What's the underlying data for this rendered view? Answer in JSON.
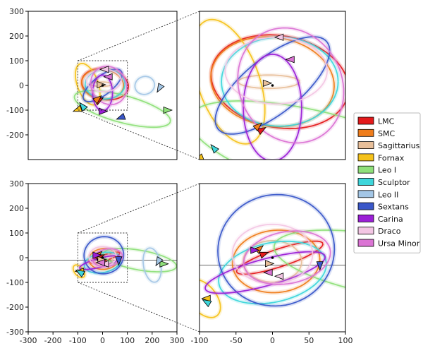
{
  "chart_data": {
    "type": "line",
    "panels": [
      {
        "id": "top-left",
        "xlim": [
          -300,
          300
        ],
        "ylim": [
          -300,
          300
        ],
        "yticks": [
          300,
          200,
          100,
          0,
          -100,
          -200
        ],
        "zoom_box": [
          -100,
          100,
          -100,
          100
        ]
      },
      {
        "id": "top-right",
        "xlim": [
          -100,
          100
        ],
        "ylim": [
          -100,
          100
        ]
      },
      {
        "id": "bottom-left",
        "xlim": [
          -300,
          300
        ],
        "ylim": [
          -300,
          300
        ],
        "xticks": [
          -300,
          -200,
          -100,
          0,
          100,
          200,
          300
        ],
        "yticks": [
          300,
          200,
          100,
          0,
          -100,
          -200,
          -300
        ],
        "zoom_box": [
          -100,
          100,
          -100,
          100
        ],
        "hline_y": -10
      },
      {
        "id": "bottom-right",
        "xlim": [
          -100,
          100
        ],
        "ylim": [
          -100,
          100
        ],
        "xticks": [
          -100,
          -50,
          0,
          50,
          100
        ],
        "hline_y": -10
      }
    ],
    "series": [
      {
        "name": "LMC",
        "color": "#e41a1c",
        "orbits": [
          {
            "cx": 10,
            "cy": 5,
            "rx": 95,
            "ry": 62,
            "rot": -10
          },
          {
            "cx": 10,
            "cy": 0,
            "rx": 62,
            "ry": 12,
            "rot": 18
          }
        ],
        "markers": [
          [
            -15,
            -60,
            30
          ],
          [
            -12,
            5,
            20
          ]
        ]
      },
      {
        "name": "SMC",
        "color": "#ef7d1c",
        "orbits": [
          {
            "cx": 0,
            "cy": 5,
            "rx": 85,
            "ry": 60,
            "rot": -8
          },
          {
            "cx": 5,
            "cy": -5,
            "rx": 60,
            "ry": 42,
            "rot": 5
          }
        ],
        "markers": [
          [
            -20,
            -55,
            40
          ],
          [
            -18,
            12,
            40
          ]
        ]
      },
      {
        "name": "Sagittarius",
        "color": "#e8bf9a",
        "orbits": [
          {
            "cx": -5,
            "cy": 5,
            "rx": 42,
            "ry": 9,
            "rot": 0
          },
          {
            "cx": 0,
            "cy": -5,
            "rx": 40,
            "ry": 28,
            "rot": 0
          }
        ],
        "markers": [
          [
            -8,
            3,
            0
          ],
          [
            -5,
            -8,
            0
          ]
        ]
      },
      {
        "name": "Fornax",
        "color": "#f5c21b",
        "orbits": [
          {
            "cx": -60,
            "cy": 5,
            "rx": 42,
            "ry": 88,
            "rot": 20
          },
          {
            "cx": -95,
            "cy": -55,
            "rx": 18,
            "ry": 30,
            "rot": 40
          }
        ],
        "markers": [
          [
            -100,
            -98,
            200
          ],
          [
            -90,
            -55,
            180
          ]
        ]
      },
      {
        "name": "Leo I",
        "color": "#8fe07a",
        "orbits": [
          {
            "cx": 80,
            "cy": -95,
            "rx": 200,
            "ry": 55,
            "rot": -15
          },
          {
            "cx": 150,
            "cy": -10,
            "rx": 150,
            "ry": 40,
            "rot": -10
          }
        ],
        "markers": [
          [
            260,
            -100,
            0
          ],
          [
            245,
            -25,
            0
          ]
        ]
      },
      {
        "name": "Sculptor",
        "color": "#3ed6db",
        "orbits": [
          {
            "cx": 10,
            "cy": 5,
            "rx": 80,
            "ry": 60,
            "rot": 0
          },
          {
            "cx": 0,
            "cy": -20,
            "rx": 75,
            "ry": 40,
            "rot": 12
          }
        ],
        "markers": [
          [
            -80,
            -85,
            130
          ],
          [
            -90,
            -60,
            150
          ]
        ]
      },
      {
        "name": "Leo II",
        "color": "#a3c6e6",
        "orbits": [
          {
            "cx": 170,
            "cy": 0,
            "rx": 40,
            "ry": 36,
            "rot": 20
          },
          {
            "cx": 200,
            "cy": -30,
            "rx": 35,
            "ry": 70,
            "rot": 10
          }
        ],
        "markers": [
          [
            230,
            -10,
            240
          ],
          [
            225,
            -15,
            240
          ]
        ]
      },
      {
        "name": "Sextans",
        "color": "#3a57c9",
        "orbits": [
          {
            "cx": 0,
            "cy": 0,
            "rx": 95,
            "ry": 38,
            "rot": 38
          },
          {
            "cx": 5,
            "cy": 10,
            "rx": 80,
            "ry": 75,
            "rot": 10
          }
        ],
        "markers": [
          [
            75,
            -130,
            200
          ],
          [
            65,
            -10,
            270
          ]
        ]
      },
      {
        "name": "Carina",
        "color": "#9b1fd6",
        "orbits": [
          {
            "cx": 0,
            "cy": -30,
            "rx": 40,
            "ry": 72,
            "rot": 0
          },
          {
            "cx": -10,
            "cy": -20,
            "rx": 85,
            "ry": 18,
            "rot": 15
          }
        ],
        "markers": [
          [
            0,
            -105,
            0
          ],
          [
            -25,
            10,
            0
          ]
        ]
      },
      {
        "name": "Draco",
        "color": "#f3c6e4",
        "orbits": [
          {
            "cx": 5,
            "cy": 20,
            "rx": 70,
            "ry": 45,
            "rot": 0
          },
          {
            "cx": 0,
            "cy": 5,
            "rx": 55,
            "ry": 40,
            "rot": 0
          }
        ],
        "markers": [
          [
            10,
            65,
            180
          ],
          [
            10,
            -25,
            180
          ]
        ]
      },
      {
        "name": "Ursa Minor",
        "color": "#db74d4",
        "orbits": [
          {
            "cx": 25,
            "cy": 0,
            "rx": 70,
            "ry": 80,
            "rot": 30
          },
          {
            "cx": 20,
            "cy": 0,
            "rx": 60,
            "ry": 35,
            "rot": 10
          }
        ],
        "markers": [
          [
            25,
            35,
            180
          ],
          [
            -5,
            -20,
            180
          ]
        ]
      }
    ],
    "legend": {
      "position": "right"
    },
    "center_dot": [
      0,
      0
    ]
  }
}
